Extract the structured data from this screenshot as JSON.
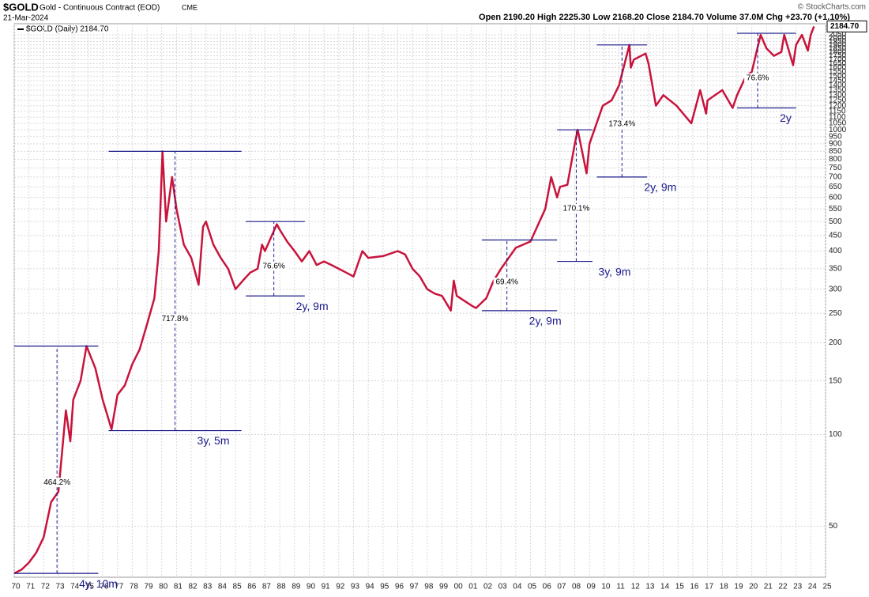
{
  "header": {
    "symbol": "$GOLD",
    "name": "Gold - Continuous Contract (EOD)",
    "exchange": "CME",
    "date": "21-Mar-2024",
    "ohlc": "Open 2190.20 High 2225.30 Low 2168.20 Close 2184.70 Volume 37.0M Chg +23.70 (+1.10%)",
    "copyright": "© StockCharts.com"
  },
  "chart_data": {
    "type": "line",
    "log_scale": true,
    "grid": true,
    "series": [
      {
        "name": "$GOLD (Daily) 2184.70",
        "color": "#c8143c",
        "x": [
          1970,
          1970.5,
          1971,
          1971.5,
          1972,
          1972.5,
          1973,
          1973.5,
          1973.8,
          1974,
          1974.5,
          1974.9,
          1975.5,
          1976,
          1976.6,
          1977,
          1977.5,
          1978,
          1978.5,
          1979,
          1979.5,
          1979.8,
          1980.05,
          1980.3,
          1980.7,
          1981,
          1981.5,
          1982,
          1982.5,
          1982.8,
          1983,
          1983.5,
          1984,
          1984.5,
          1985,
          1985.5,
          1986,
          1986.5,
          1986.8,
          1987,
          1987.8,
          1988,
          1988.5,
          1989,
          1989.5,
          1990,
          1990.5,
          1991,
          1991.5,
          1992,
          1992.5,
          1993,
          1993.6,
          1994,
          1995,
          1996,
          1996.5,
          1997,
          1997.5,
          1998,
          1998.5,
          1999,
          1999.6,
          1999.8,
          2000,
          2001,
          2001.3,
          2002,
          2002.5,
          2003,
          2004,
          2005,
          2006,
          2006.4,
          2006.8,
          2007,
          2007.5,
          2008,
          2008.2,
          2008.8,
          2009,
          2009.9,
          2010.5,
          2011,
          2011.7,
          2011.8,
          2012,
          2012.8,
          2013,
          2013.5,
          2014,
          2014.9,
          2015.9,
          2016.5,
          2016.9,
          2017,
          2018,
          2018.7,
          2019,
          2019.6,
          2020,
          2020.6,
          2021,
          2021.5,
          2022,
          2022.2,
          2022.8,
          2023,
          2023.4,
          2023.8,
          2024,
          2024.22
        ],
        "values": [
          35,
          36,
          38,
          41,
          46,
          60,
          65,
          120,
          95,
          130,
          150,
          195,
          165,
          130,
          104,
          135,
          145,
          170,
          190,
          230,
          280,
          400,
          850,
          500,
          700,
          550,
          420,
          380,
          310,
          480,
          500,
          420,
          380,
          350,
          300,
          320,
          340,
          350,
          420,
          400,
          490,
          470,
          430,
          400,
          370,
          400,
          360,
          370,
          360,
          350,
          340,
          330,
          400,
          380,
          385,
          400,
          390,
          350,
          330,
          300,
          290,
          285,
          255,
          320,
          285,
          265,
          260,
          280,
          320,
          350,
          410,
          430,
          550,
          700,
          600,
          650,
          660,
          900,
          1000,
          720,
          900,
          1200,
          1250,
          1400,
          1900,
          1600,
          1700,
          1780,
          1650,
          1200,
          1300,
          1200,
          1050,
          1350,
          1130,
          1250,
          1350,
          1180,
          1300,
          1500,
          1550,
          2050,
          1850,
          1750,
          1800,
          2050,
          1630,
          1900,
          2050,
          1820,
          2050,
          2184.7
        ],
        "last_label": "2184.70"
      }
    ],
    "annotations": [
      {
        "pct": "464.2%",
        "span": "4y, 10m",
        "x_from": 1970,
        "x_to": 1975.7,
        "x_mark": 1972.9,
        "low": 35,
        "high": 195
      },
      {
        "pct": "717.8%",
        "span": "3y, 5m",
        "x_from": 1976.4,
        "x_to": 1985.4,
        "x_mark": 1980.9,
        "low": 103,
        "high": 850
      },
      {
        "pct": "76.6%",
        "span": "2y, 9m",
        "x_from": 1985.7,
        "x_to": 1989.7,
        "x_mark": 1987.6,
        "low": 285,
        "high": 500
      },
      {
        "pct": "69.4%",
        "span": "2y, 9m",
        "x_from": 2001.7,
        "x_to": 2006.8,
        "x_mark": 2003.4,
        "low": 255,
        "high": 435
      },
      {
        "pct": "170.1%",
        "span": "3y, 9m",
        "x_from": 2006.8,
        "x_to": 2009.2,
        "x_mark": 2008.1,
        "low": 370,
        "high": 1000
      },
      {
        "pct": "173.4%",
        "span": "2y, 9m",
        "x_from": 2009.5,
        "x_to": 2012.9,
        "x_mark": 2011.2,
        "low": 700,
        "high": 1900
      },
      {
        "pct": "76.6%",
        "span": "2y",
        "x_from": 2019,
        "x_to": 2023,
        "x_mark": 2020.4,
        "low": 1180,
        "high": 2075
      }
    ],
    "xlim": [
      1970,
      2025
    ],
    "ylim": [
      34,
      2230
    ],
    "xticks": [
      {
        "value": 1970,
        "label": "70"
      },
      {
        "value": 1971,
        "label": "71"
      },
      {
        "value": 1972,
        "label": "72"
      },
      {
        "value": 1973,
        "label": "73"
      },
      {
        "value": 1974,
        "label": "74"
      },
      {
        "value": 1975,
        "label": "75"
      },
      {
        "value": 1976,
        "label": "76"
      },
      {
        "value": 1977,
        "label": "77"
      },
      {
        "value": 1978,
        "label": "78"
      },
      {
        "value": 1979,
        "label": "79"
      },
      {
        "value": 1980,
        "label": "80"
      },
      {
        "value": 1981,
        "label": "81"
      },
      {
        "value": 1982,
        "label": "82"
      },
      {
        "value": 1983,
        "label": "83"
      },
      {
        "value": 1984,
        "label": "84"
      },
      {
        "value": 1985,
        "label": "85"
      },
      {
        "value": 1986,
        "label": "86"
      },
      {
        "value": 1987,
        "label": "87"
      },
      {
        "value": 1988,
        "label": "88"
      },
      {
        "value": 1989,
        "label": "89"
      },
      {
        "value": 1990,
        "label": "90"
      },
      {
        "value": 1991,
        "label": "91"
      },
      {
        "value": 1992,
        "label": "92"
      },
      {
        "value": 1993,
        "label": "93"
      },
      {
        "value": 1994,
        "label": "94"
      },
      {
        "value": 1995,
        "label": "95"
      },
      {
        "value": 1996,
        "label": "96"
      },
      {
        "value": 1997,
        "label": "97"
      },
      {
        "value": 1998,
        "label": "98"
      },
      {
        "value": 1999,
        "label": "99"
      },
      {
        "value": 2000,
        "label": "00"
      },
      {
        "value": 2001,
        "label": "01"
      },
      {
        "value": 2002,
        "label": "02"
      },
      {
        "value": 2003,
        "label": "03"
      },
      {
        "value": 2004,
        "label": "04"
      },
      {
        "value": 2005,
        "label": "05"
      },
      {
        "value": 2006,
        "label": "06"
      },
      {
        "value": 2007,
        "label": "07"
      },
      {
        "value": 2008,
        "label": "08"
      },
      {
        "value": 2009,
        "label": "09"
      },
      {
        "value": 2010,
        "label": "10"
      },
      {
        "value": 2011,
        "label": "11"
      },
      {
        "value": 2012,
        "label": "12"
      },
      {
        "value": 2013,
        "label": "13"
      },
      {
        "value": 2014,
        "label": "14"
      },
      {
        "value": 2015,
        "label": "15"
      },
      {
        "value": 2016,
        "label": "16"
      },
      {
        "value": 2017,
        "label": "17"
      },
      {
        "value": 2018,
        "label": "18"
      },
      {
        "value": 2019,
        "label": "19"
      },
      {
        "value": 2020,
        "label": "20"
      },
      {
        "value": 2021,
        "label": "21"
      },
      {
        "value": 2022,
        "label": "22"
      },
      {
        "value": 2023,
        "label": "23"
      },
      {
        "value": 2024,
        "label": "24"
      },
      {
        "value": 2025,
        "label": "25"
      }
    ],
    "yticks": [
      50,
      100,
      150,
      200,
      250,
      300,
      350,
      400,
      450,
      500,
      550,
      600,
      650,
      700,
      750,
      800,
      850,
      900,
      950,
      1000,
      1050,
      1100,
      1150,
      1200,
      1250,
      1300,
      1350,
      1400,
      1450,
      1500,
      1550,
      1600,
      1650,
      1700,
      1750,
      1800,
      1850,
      1900,
      1950,
      2000,
      2050
    ]
  }
}
